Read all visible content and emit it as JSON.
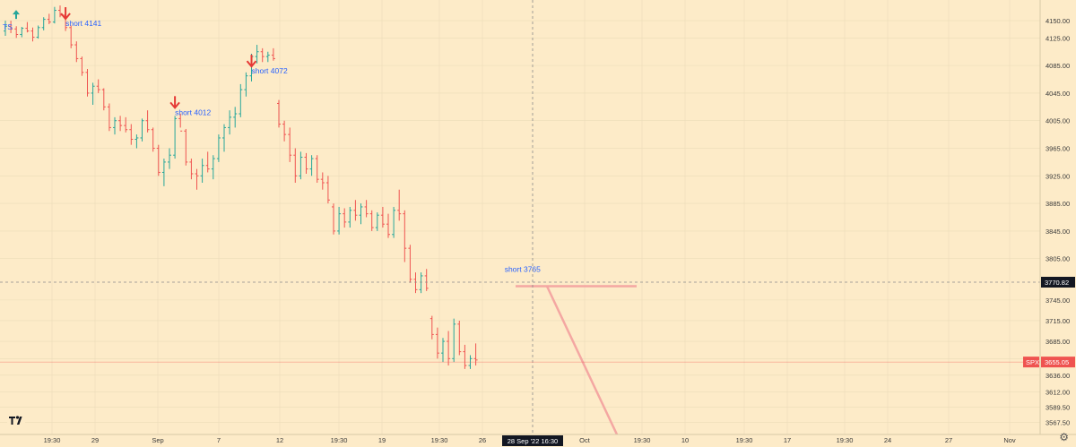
{
  "chart_data": {
    "type": "bar",
    "style": "ohlc",
    "symbol": "SPX",
    "last_price": "3655.05",
    "crosshair_price": "3770.82",
    "crosshair_time": "28 Sep '22  16:30",
    "ylim": [
      3550,
      4180
    ],
    "y_ticks": [
      "4150.00",
      "4125.00",
      "4085.00",
      "4045.00",
      "4005.00",
      "3965.00",
      "3925.00",
      "3885.00",
      "3845.00",
      "3805.00",
      "3745.00",
      "3715.00",
      "3685.00",
      "3660.00",
      "3636.00",
      "3612.00",
      "3589.50",
      "3567.50"
    ],
    "x_ticks": [
      "19:30",
      "29",
      "Sep",
      "7",
      "12",
      "19:30",
      "19",
      "19:30",
      "26",
      "Oct",
      "19:30",
      "10",
      "19:30",
      "17",
      "19:30",
      "24",
      "27",
      "Nov"
    ],
    "x_tick_slots": [
      58,
      106,
      176,
      244,
      312,
      378,
      426,
      490,
      538,
      652,
      716,
      764,
      830,
      878,
      942,
      990,
      1058,
      1126
    ],
    "bars": [
      [
        4135,
        4150,
        4128,
        4142
      ],
      [
        4142,
        4150,
        4132,
        4138
      ],
      [
        4138,
        4142,
        4125,
        4130
      ],
      [
        4130,
        4141,
        4126,
        4139
      ],
      [
        4139,
        4148,
        4133,
        4135
      ],
      [
        4135,
        4140,
        4120,
        4126
      ],
      [
        4126,
        4143,
        4124,
        4140
      ],
      [
        4140,
        4155,
        4136,
        4152
      ],
      [
        4152,
        4160,
        4145,
        4148
      ],
      [
        4148,
        4170,
        4146,
        4165
      ],
      [
        4165,
        4172,
        4155,
        4158
      ],
      [
        4158,
        4162,
        4135,
        4140
      ],
      [
        4140,
        4143,
        4110,
        4115
      ],
      [
        4115,
        4120,
        4090,
        4095
      ],
      [
        4095,
        4098,
        4070,
        4075
      ],
      [
        4075,
        4080,
        4040,
        4045
      ],
      [
        4045,
        4060,
        4028,
        4055
      ],
      [
        4055,
        4065,
        4045,
        4050
      ],
      [
        4050,
        4052,
        4020,
        4025
      ],
      [
        4025,
        4030,
        3990,
        3995
      ],
      [
        3995,
        4010,
        3985,
        4005
      ],
      [
        4005,
        4012,
        3990,
        3998
      ],
      [
        3998,
        4010,
        3988,
        3992
      ],
      [
        3992,
        4000,
        3970,
        3978
      ],
      [
        3978,
        3985,
        3965,
        3980
      ],
      [
        3980,
        4008,
        3975,
        4005
      ],
      [
        4005,
        4020,
        3988,
        3992
      ],
      [
        3992,
        3995,
        3960,
        3965
      ],
      [
        3965,
        3970,
        3925,
        3930
      ],
      [
        3930,
        3950,
        3910,
        3945
      ],
      [
        3945,
        3965,
        3935,
        3955
      ],
      [
        3955,
        4012,
        3950,
        4008
      ],
      [
        4008,
        4015,
        3995,
        3990
      ],
      [
        3990,
        3993,
        3940,
        3945
      ],
      [
        3945,
        3950,
        3920,
        3928
      ],
      [
        3928,
        3935,
        3905,
        3925
      ],
      [
        3925,
        3950,
        3915,
        3940
      ],
      [
        3940,
        3960,
        3930,
        3935
      ],
      [
        3935,
        3955,
        3920,
        3950
      ],
      [
        3950,
        3985,
        3945,
        3980
      ],
      [
        3980,
        4000,
        3960,
        3995
      ],
      [
        3995,
        4020,
        3985,
        4010
      ],
      [
        4010,
        4025,
        3995,
        4015
      ],
      [
        4015,
        4058,
        4010,
        4050
      ],
      [
        4050,
        4075,
        4040,
        4070
      ],
      [
        4070,
        4102,
        4062,
        4098
      ],
      [
        4098,
        4115,
        4088,
        4105
      ],
      [
        4105,
        4110,
        4090,
        4098
      ],
      [
        4098,
        4105,
        4090,
        4100
      ],
      [
        4100,
        4110,
        4092,
        4095
      ],
      [
        4030,
        4035,
        3995,
        4000
      ],
      [
        4000,
        4005,
        3975,
        3985
      ],
      [
        3985,
        3995,
        3945,
        3955
      ],
      [
        3955,
        3965,
        3915,
        3925
      ],
      [
        3925,
        3960,
        3920,
        3952
      ],
      [
        3952,
        3958,
        3928,
        3935
      ],
      [
        3935,
        3955,
        3925,
        3950
      ],
      [
        3950,
        3955,
        3915,
        3920
      ],
      [
        3920,
        3930,
        3905,
        3915
      ],
      [
        3915,
        3925,
        3885,
        3890
      ],
      [
        3880,
        3885,
        3840,
        3845
      ],
      [
        3845,
        3880,
        3840,
        3870
      ],
      [
        3870,
        3878,
        3850,
        3858
      ],
      [
        3858,
        3880,
        3850,
        3875
      ],
      [
        3875,
        3890,
        3860,
        3868
      ],
      [
        3868,
        3885,
        3855,
        3880
      ],
      [
        3880,
        3890,
        3865,
        3870
      ],
      [
        3870,
        3875,
        3845,
        3850
      ],
      [
        3850,
        3872,
        3845,
        3868
      ],
      [
        3868,
        3880,
        3850,
        3855
      ],
      [
        3855,
        3870,
        3835,
        3840
      ],
      [
        3840,
        3880,
        3835,
        3875
      ],
      [
        3875,
        3905,
        3860,
        3870
      ],
      [
        3870,
        3875,
        3800,
        3820
      ],
      [
        3820,
        3825,
        3770,
        3775
      ],
      [
        3775,
        3785,
        3755,
        3760
      ],
      [
        3760,
        3785,
        3755,
        3780
      ],
      [
        3780,
        3790,
        3758,
        3762
      ],
      [
        3718,
        3722,
        3688,
        3695
      ],
      [
        3695,
        3705,
        3660,
        3668
      ],
      [
        3668,
        3690,
        3655,
        3685
      ],
      [
        3685,
        3700,
        3650,
        3660
      ],
      [
        3660,
        3718,
        3655,
        3710
      ],
      [
        3710,
        3715,
        3665,
        3670
      ],
      [
        3670,
        3680,
        3645,
        3650
      ],
      [
        3650,
        3665,
        3645,
        3660
      ],
      [
        3660,
        3682,
        3650,
        3658
      ]
    ],
    "annotations": [
      {
        "label": "short 4141",
        "price": 4141,
        "bar": 11
      },
      {
        "label": "short  4012",
        "price": 4012,
        "bar": 31
      },
      {
        "label": "short  4072",
        "price": 4072,
        "bar": 45
      },
      {
        "label": "short 3765",
        "price": 3765,
        "bar": 88
      },
      {
        "label": "TS",
        "price": 4150,
        "bar": 0
      }
    ],
    "colors": {
      "background": "#fdebc8",
      "up": "#26a69a",
      "down": "#ef5350",
      "annotation_text": "#2962ff",
      "arrow": "#e53935",
      "projection_line": "#f4a7a2",
      "last_price_badge": "#ef5350",
      "crosshair_badge": "#131722",
      "grid": "#ecdcb9"
    }
  }
}
